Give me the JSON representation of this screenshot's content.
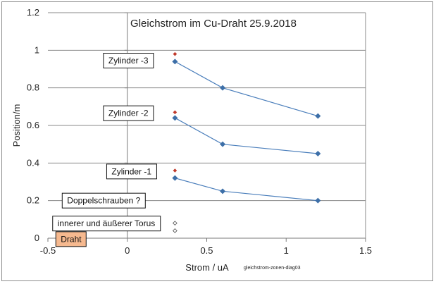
{
  "chart_data": {
    "type": "scatter",
    "title": "Gleichstrom im Cu-Draht  25.9.2018",
    "xlabel": "Strom / uA",
    "ylabel": "Position/m",
    "note": "gleichstrom-zonen-diag03",
    "xlim": [
      -0.5,
      1.5
    ],
    "ylim": [
      0,
      1.2
    ],
    "x_ticks": [
      -0.5,
      0,
      0.5,
      1,
      1.5
    ],
    "x_tick_labels": [
      "-0.5",
      "0",
      "0.5",
      "1",
      "1.5"
    ],
    "y_ticks": [
      0,
      0.2,
      0.4,
      0.6,
      0.8,
      1,
      1.2
    ],
    "y_tick_labels": [
      "0",
      "0.2",
      "0.4",
      "0.6",
      "0.8",
      "1",
      "1.2"
    ],
    "grid": "horizontal",
    "series": [
      {
        "color": "#3d6fa8",
        "marker": "diamond",
        "line": true,
        "x": [
          0.3,
          0.6,
          1.2
        ],
        "y": [
          0.94,
          0.8,
          0.65
        ]
      },
      {
        "color": "#3d6fa8",
        "marker": "diamond",
        "line": true,
        "x": [
          0.3,
          0.6,
          1.2
        ],
        "y": [
          0.64,
          0.5,
          0.45
        ]
      },
      {
        "color": "#3d6fa8",
        "marker": "diamond",
        "line": true,
        "x": [
          0.3,
          0.6,
          1.2
        ],
        "y": [
          0.32,
          0.25,
          0.2
        ]
      },
      {
        "color": "#c0392b",
        "marker": "diamond-small",
        "line": false,
        "x": [
          0.3,
          0.3,
          0.3
        ],
        "y": [
          0.98,
          0.67,
          0.36
        ]
      },
      {
        "color": "#555555",
        "marker": "diamond-open",
        "line": false,
        "x": [
          0.3,
          0.3
        ],
        "y": [
          0.08,
          0.04
        ]
      }
    ],
    "annotations": [
      {
        "text": "Zylinder -3",
        "x": -0.15,
        "y": 0.945,
        "fill": "#ffffff"
      },
      {
        "text": "Zylinder -2",
        "x": -0.15,
        "y": 0.665,
        "fill": "#ffffff"
      },
      {
        "text": "Zylinder -1",
        "x": -0.13,
        "y": 0.355,
        "fill": "#ffffff"
      },
      {
        "text": "Doppelschrauben ?",
        "x": -0.41,
        "y": 0.2,
        "fill": "#ffffff"
      },
      {
        "text": "innerer und äußerer Torus",
        "x": -0.47,
        "y": 0.078,
        "fill": "#ffffff"
      },
      {
        "text": "Draht",
        "x": -0.45,
        "y": -0.005,
        "fill": "#f6b98f"
      }
    ]
  }
}
